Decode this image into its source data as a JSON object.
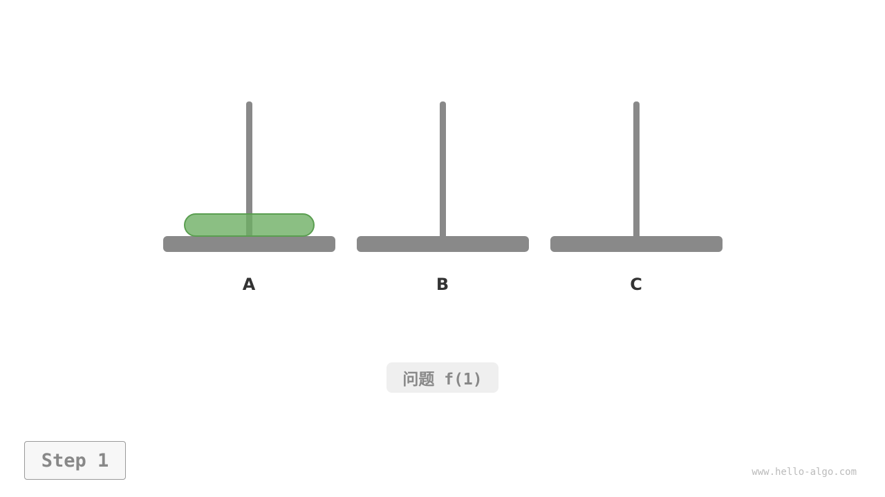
{
  "pegs": [
    {
      "label": "A"
    },
    {
      "label": "B"
    },
    {
      "label": "C"
    }
  ],
  "disks": [
    {
      "peg": "A",
      "color": "#86bf80"
    }
  ],
  "caption": "问题 f(1)",
  "step_label": "Step 1",
  "watermark": "www.hello-algo.com"
}
